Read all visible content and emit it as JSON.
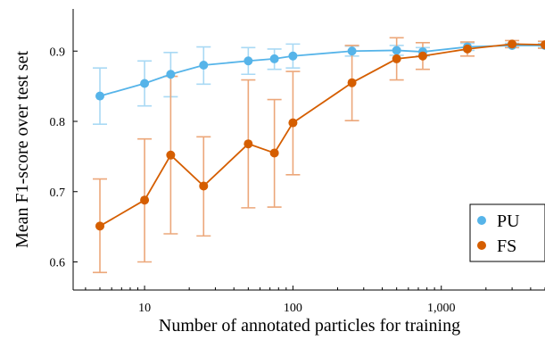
{
  "chart_data": {
    "type": "line",
    "xlabel": "Number of annotated particles for training",
    "ylabel": "Mean F1-score over test set",
    "xscale": "log",
    "xlim": [
      3.3,
      5000
    ],
    "ylim": [
      0.56,
      0.96
    ],
    "x_ticks": [
      10,
      100,
      1000
    ],
    "x_tick_labels": [
      "10",
      "100",
      "1,000"
    ],
    "y_ticks": [
      0.6,
      0.7,
      0.8,
      0.9
    ],
    "y_tick_labels": [
      "0.6",
      "0.7",
      "0.8",
      "0.9"
    ],
    "grid": false,
    "legend_position": "bottom-right",
    "series": [
      {
        "name": "PU",
        "color": "#56b4e9",
        "errorbar_color": "#a9d9f4",
        "points": [
          {
            "x": 5,
            "y": 0.836,
            "ylow": 0.796,
            "yhigh": 0.876
          },
          {
            "x": 10,
            "y": 0.854,
            "ylow": 0.822,
            "yhigh": 0.886
          },
          {
            "x": 15,
            "y": 0.867,
            "ylow": 0.835,
            "yhigh": 0.898
          },
          {
            "x": 25,
            "y": 0.88,
            "ylow": 0.853,
            "yhigh": 0.906
          },
          {
            "x": 50,
            "y": 0.886,
            "ylow": 0.867,
            "yhigh": 0.905
          },
          {
            "x": 75,
            "y": 0.889,
            "ylow": 0.874,
            "yhigh": 0.903
          },
          {
            "x": 100,
            "y": 0.893,
            "ylow": 0.876,
            "yhigh": 0.91
          },
          {
            "x": 250,
            "y": 0.9,
            "ylow": 0.893,
            "yhigh": 0.907
          },
          {
            "x": 500,
            "y": 0.901,
            "ylow": 0.894,
            "yhigh": 0.908
          },
          {
            "x": 750,
            "y": 0.899,
            "ylow": 0.893,
            "yhigh": 0.905
          },
          {
            "x": 1500,
            "y": 0.906,
            "ylow": 0.901,
            "yhigh": 0.911
          },
          {
            "x": 3000,
            "y": 0.908,
            "ylow": 0.905,
            "yhigh": 0.911
          },
          {
            "x": 5000,
            "y": 0.908,
            "ylow": 0.905,
            "yhigh": 0.911
          }
        ]
      },
      {
        "name": "FS",
        "color": "#d55e00",
        "errorbar_color": "#eca77a",
        "points": [
          {
            "x": 5,
            "y": 0.651,
            "ylow": 0.585,
            "yhigh": 0.718
          },
          {
            "x": 10,
            "y": 0.688,
            "ylow": 0.6,
            "yhigh": 0.775
          },
          {
            "x": 15,
            "y": 0.752,
            "ylow": 0.64,
            "yhigh": 0.864
          },
          {
            "x": 25,
            "y": 0.708,
            "ylow": 0.637,
            "yhigh": 0.778
          },
          {
            "x": 50,
            "y": 0.768,
            "ylow": 0.677,
            "yhigh": 0.859
          },
          {
            "x": 75,
            "y": 0.755,
            "ylow": 0.678,
            "yhigh": 0.831
          },
          {
            "x": 100,
            "y": 0.798,
            "ylow": 0.724,
            "yhigh": 0.871
          },
          {
            "x": 250,
            "y": 0.855,
            "ylow": 0.801,
            "yhigh": 0.908
          },
          {
            "x": 500,
            "y": 0.889,
            "ylow": 0.859,
            "yhigh": 0.919
          },
          {
            "x": 750,
            "y": 0.893,
            "ylow": 0.874,
            "yhigh": 0.912
          },
          {
            "x": 1500,
            "y": 0.903,
            "ylow": 0.893,
            "yhigh": 0.913
          },
          {
            "x": 3000,
            "y": 0.91,
            "ylow": 0.905,
            "yhigh": 0.915
          },
          {
            "x": 5000,
            "y": 0.909,
            "ylow": 0.904,
            "yhigh": 0.914
          }
        ]
      }
    ]
  }
}
